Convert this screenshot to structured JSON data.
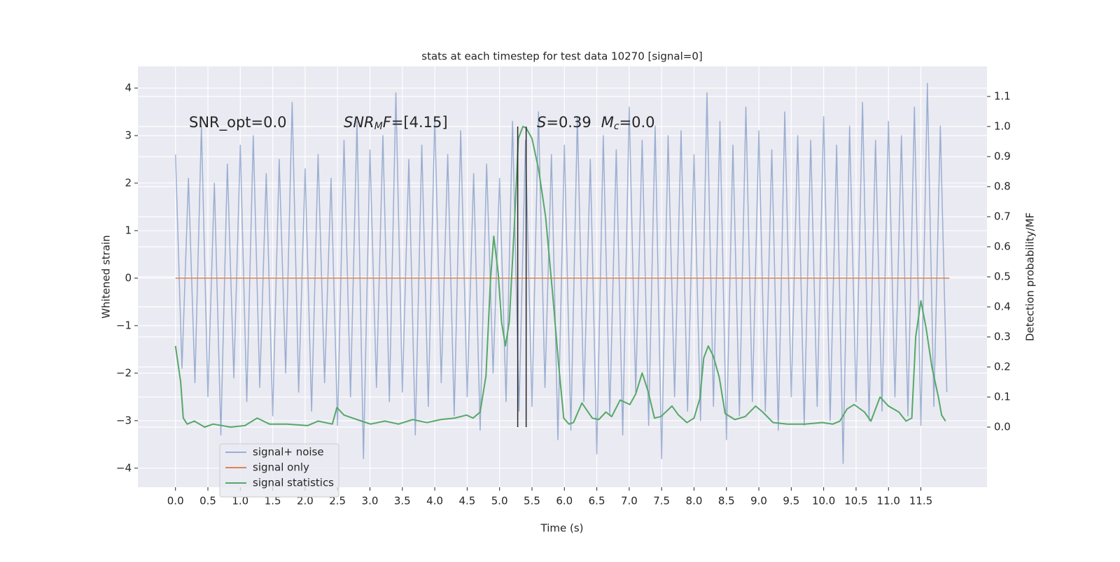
{
  "chart_data": {
    "type": "line",
    "title": "stats at each timestep for test data 10270 [signal=0]",
    "xlabel": "Time (s)",
    "ylabel": "Whitened strain",
    "y2label": "Detection probability/MF",
    "annotations": [
      "SNR_opt=0.0",
      [
        "SNR",
        "M",
        "F",
        "=[4.15]"
      ],
      [
        "S",
        "=0.39",
        "M",
        "c",
        "=0.0"
      ]
    ],
    "xlim": [
      -0.58,
      12.52
    ],
    "ylim": [
      -4.4,
      4.456
    ],
    "y2lim": [
      -0.2,
      1.2
    ],
    "xticks": [
      {
        "value": 0,
        "label": "0.0"
      },
      {
        "value": 0.5,
        "label": "0.5"
      },
      {
        "value": 1,
        "label": "1.0"
      },
      {
        "value": 1.5,
        "label": "1.5"
      },
      {
        "value": 2,
        "label": "2.0"
      },
      {
        "value": 2.5,
        "label": "2.5"
      },
      {
        "value": 3,
        "label": "3.0"
      },
      {
        "value": 3.5,
        "label": "3.5"
      },
      {
        "value": 4,
        "label": "4.0"
      },
      {
        "value": 4.5,
        "label": "4.5"
      },
      {
        "value": 5,
        "label": "5.0"
      },
      {
        "value": 5.5,
        "label": "5.5"
      },
      {
        "value": 6,
        "label": "6.0"
      },
      {
        "value": 6.5,
        "label": "6.5"
      },
      {
        "value": 7,
        "label": "7.0"
      },
      {
        "value": 7.5,
        "label": "7.5"
      },
      {
        "value": 8,
        "label": "8.0"
      },
      {
        "value": 8.5,
        "label": "8.5"
      },
      {
        "value": 9,
        "label": "9.0"
      },
      {
        "value": 9.5,
        "label": "9.5"
      },
      {
        "value": 10,
        "label": "10.0"
      },
      {
        "value": 10.5,
        "label": "10.5"
      },
      {
        "value": 11,
        "label": "11.0"
      },
      {
        "value": 11.5,
        "label": "11.5"
      }
    ],
    "yticks": [
      {
        "value": -4,
        "label": "−4"
      },
      {
        "value": -3,
        "label": "−3"
      },
      {
        "value": -2,
        "label": "−2"
      },
      {
        "value": -1,
        "label": "−1"
      },
      0,
      1,
      2,
      3,
      4
    ],
    "y2ticks": [
      {
        "value": 0,
        "label": "0.0"
      },
      {
        "value": 0.1,
        "label": "0.1"
      },
      {
        "value": 0.2,
        "label": "0.2"
      },
      {
        "value": 0.3,
        "label": "0.3"
      },
      {
        "value": 0.4,
        "label": "0.4"
      },
      {
        "value": 0.5,
        "label": "0.5"
      },
      {
        "value": 0.6,
        "label": "0.6"
      },
      {
        "value": 0.7,
        "label": "0.7"
      },
      {
        "value": 0.8,
        "label": "0.8"
      },
      {
        "value": 0.9,
        "label": "0.9"
      },
      {
        "value": 1,
        "label": "1.0"
      },
      {
        "value": 1.1,
        "label": "1.1"
      }
    ],
    "grid": true,
    "legend": "lower left",
    "series": [
      {
        "name": "signal+ noise",
        "color": "#4c72b0",
        "opacity": 0.5,
        "x": [
          0,
          0.1,
          0.2,
          0.3,
          0.4,
          0.5,
          0.6,
          0.7,
          0.8,
          0.9,
          1,
          1.1,
          1.2,
          1.3,
          1.4,
          1.5,
          1.6,
          1.7,
          1.8,
          1.9,
          2,
          2.1,
          2.2,
          2.3,
          2.4,
          2.5,
          2.6,
          2.7,
          2.8,
          2.9,
          3,
          3.1,
          3.2,
          3.3,
          3.4,
          3.5,
          3.6,
          3.7,
          3.8,
          3.9,
          4,
          4.1,
          4.2,
          4.3,
          4.4,
          4.5,
          4.6,
          4.7,
          4.8,
          4.9,
          5,
          5.1,
          5.2,
          5.3,
          5.4,
          5.5,
          5.6,
          5.7,
          5.8,
          5.9,
          6,
          6.1,
          6.2,
          6.3,
          6.4,
          6.5,
          6.6,
          6.7,
          6.8,
          6.9,
          7,
          7.1,
          7.2,
          7.3,
          7.4,
          7.5,
          7.6,
          7.7,
          7.8,
          7.9,
          8,
          8.1,
          8.2,
          8.3,
          8.4,
          8.5,
          8.6,
          8.7,
          8.8,
          8.9,
          9,
          9.1,
          9.2,
          9.3,
          9.4,
          9.5,
          9.6,
          9.7,
          9.8,
          9.9,
          10,
          10.1,
          10.2,
          10.3,
          10.4,
          10.5,
          10.6,
          10.7,
          10.8,
          10.9,
          11,
          11.1,
          11.2,
          11.3,
          11.4,
          11.5,
          11.6,
          11.7,
          11.8,
          11.9
        ],
        "values": [
          2.6,
          -1.9,
          2.1,
          -2.2,
          3.2,
          -2.5,
          2.0,
          -3.3,
          2.4,
          -2.1,
          2.8,
          -2.6,
          3.0,
          -2.3,
          2.2,
          -2.9,
          2.5,
          -2.0,
          3.7,
          -2.4,
          2.3,
          -2.8,
          2.6,
          -2.2,
          2.1,
          -3.1,
          2.9,
          -2.5,
          3.3,
          -3.8,
          2.7,
          -2.3,
          3.0,
          -2.6,
          3.9,
          -2.4,
          2.5,
          -3.3,
          2.8,
          -2.7,
          3.4,
          -2.2,
          2.6,
          -2.9,
          3.1,
          -2.5,
          2.2,
          -3.2,
          2.4,
          -2.0,
          2.1,
          -2.6,
          3.3,
          -2.8,
          2.9,
          -2.7,
          3.5,
          -2.3,
          2.6,
          -3.4,
          2.8,
          -3.2,
          3.4,
          -2.6,
          2.5,
          -3.7,
          3.0,
          -2.9,
          2.7,
          -3.3,
          3.6,
          -2.4,
          2.9,
          -3.1,
          3.2,
          -3.8,
          3.0,
          -2.5,
          3.1,
          -2.8,
          2.6,
          -3.0,
          3.9,
          -2.7,
          3.3,
          -3.4,
          2.8,
          -2.9,
          3.6,
          -2.6,
          3.1,
          -2.8,
          2.7,
          -3.2,
          3.5,
          -2.5,
          3.0,
          -3.1,
          2.9,
          -2.7,
          3.4,
          -3.0,
          2.8,
          -3.9,
          3.2,
          -2.6,
          3.7,
          -3.0,
          2.9,
          -2.8,
          3.3,
          -2.5,
          3.0,
          -2.9,
          3.6,
          -3.1,
          4.1,
          -2.7,
          3.2,
          -2.4
        ]
      },
      {
        "name": "signal only",
        "color": "#dd8452",
        "x": [
          0,
          11.94
        ],
        "values": [
          0,
          0
        ]
      },
      {
        "name": "signal statistics",
        "color": "#55a868",
        "axis": "y2",
        "x": [
          0,
          0.08,
          0.12,
          0.18,
          0.29,
          0.45,
          0.58,
          0.85,
          1.07,
          1.26,
          1.45,
          1.72,
          2.04,
          2.2,
          2.42,
          2.49,
          2.6,
          2.8,
          3.01,
          3.23,
          3.44,
          3.66,
          3.88,
          4.09,
          4.31,
          4.49,
          4.59,
          4.7,
          4.79,
          4.86,
          4.91,
          4.98,
          5.03,
          5.09,
          5.15,
          5.23,
          5.29,
          5.36,
          5.41,
          5.5,
          5.6,
          5.71,
          5.82,
          5.91,
          5.99,
          6.07,
          6.14,
          6.27,
          6.43,
          6.53,
          6.64,
          6.73,
          6.86,
          7.01,
          7.1,
          7.2,
          7.29,
          7.39,
          7.49,
          7.66,
          7.76,
          7.89,
          8,
          8.09,
          8.15,
          8.22,
          8.3,
          8.39,
          8.48,
          8.63,
          8.79,
          8.95,
          9.06,
          9.22,
          9.44,
          9.71,
          9.98,
          10.14,
          10.25,
          10.36,
          10.47,
          10.63,
          10.73,
          10.87,
          11,
          11.16,
          11.27,
          11.36,
          11.42,
          11.5,
          11.58,
          11.67,
          11.77,
          11.82,
          11.88
        ],
        "values": [
          0.27,
          0.15,
          0.03,
          0.01,
          0.02,
          0,
          0.01,
          0,
          0.005,
          0.03,
          0.01,
          0.01,
          0.005,
          0.02,
          0.01,
          0.065,
          0.04,
          0.025,
          0.01,
          0.02,
          0.01,
          0.025,
          0.015,
          0.025,
          0.03,
          0.04,
          0.03,
          0.05,
          0.17,
          0.49,
          0.635,
          0.51,
          0.35,
          0.27,
          0.35,
          0.68,
          0.96,
          1.0,
          0.995,
          0.96,
          0.86,
          0.7,
          0.44,
          0.21,
          0.03,
          0.01,
          0.015,
          0.08,
          0.03,
          0.025,
          0.05,
          0.035,
          0.09,
          0.075,
          0.11,
          0.18,
          0.12,
          0.03,
          0.035,
          0.07,
          0.04,
          0.015,
          0.03,
          0.095,
          0.23,
          0.27,
          0.235,
          0.165,
          0.045,
          0.025,
          0.035,
          0.07,
          0.05,
          0.015,
          0.01,
          0.01,
          0.015,
          0.01,
          0.02,
          0.06,
          0.075,
          0.05,
          0.02,
          0.1,
          0.07,
          0.05,
          0.02,
          0.03,
          0.3,
          0.42,
          0.33,
          0.2,
          0.1,
          0.04,
          0.02
        ]
      }
    ],
    "vlines": {
      "x": [
        5.28,
        5.41
      ],
      "y2": [
        0,
        1.0
      ],
      "color": "#262626"
    }
  }
}
